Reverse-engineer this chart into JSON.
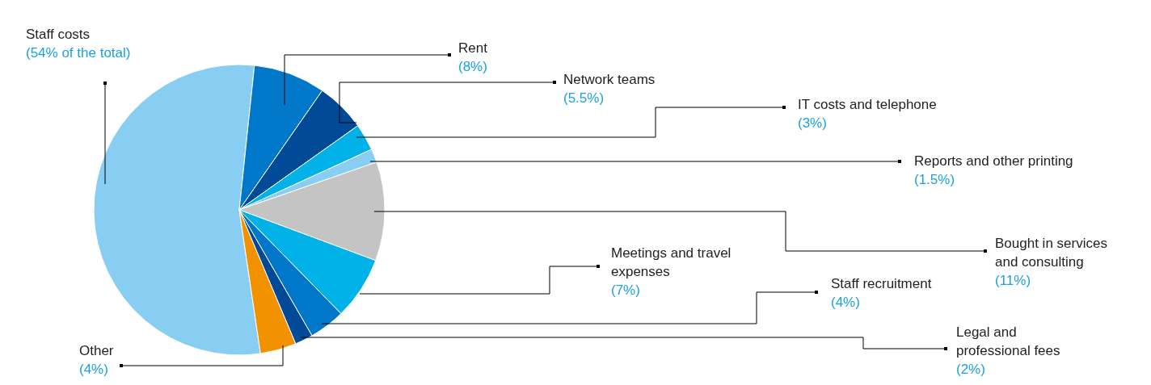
{
  "chart_data": {
    "type": "pie",
    "categories": [
      "Staff costs",
      "Rent",
      "Network teams",
      "IT costs and telephone",
      "Reports and other printing",
      "Bought in services\nand consulting",
      "Meetings and travel\nexpenses",
      "Staff recruitment",
      "Legal and\nprofessional fees",
      "Other"
    ],
    "values": [
      54,
      8,
      5.5,
      3,
      1.5,
      11,
      7,
      4,
      2,
      4
    ],
    "colors": [
      "#87cef2",
      "#0077c8",
      "#004a98",
      "#00b2e8",
      "#87cef2",
      "#c4c4c4",
      "#00b2e8",
      "#0077c8",
      "#004a98",
      "#f39200"
    ],
    "value_labels": [
      "(54% of the total)",
      "(8%)",
      "(5.5%)",
      "(3%)",
      "(1.5%)",
      "(11%)",
      "(7%)",
      "(4%)",
      "(2%)",
      "(4%)"
    ]
  }
}
